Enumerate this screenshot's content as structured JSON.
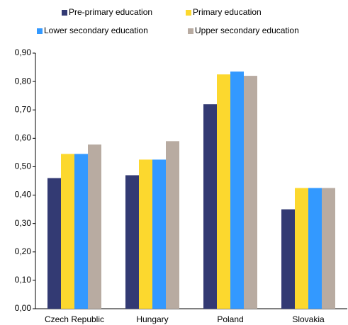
{
  "chart_data": {
    "type": "bar",
    "categories": [
      "Czech Republic",
      "Hungary",
      "Poland",
      "Slovakia"
    ],
    "series": [
      {
        "name": "Pre-primary education",
        "color": "#333a73",
        "values": [
          0.46,
          0.47,
          0.72,
          0.35
        ]
      },
      {
        "name": "Primary education",
        "color": "#fcd82e",
        "values": [
          0.545,
          0.525,
          0.825,
          0.425
        ]
      },
      {
        "name": "Lower secondary education",
        "color": "#3399ff",
        "values": [
          0.545,
          0.525,
          0.835,
          0.425
        ]
      },
      {
        "name": "Upper secondary education",
        "color": "#b8aba1",
        "values": [
          0.578,
          0.59,
          0.82,
          0.425
        ]
      }
    ],
    "ylim": [
      0,
      0.9
    ],
    "yticks": [
      {
        "value": 0,
        "label": "0,00"
      },
      {
        "value": 0.1,
        "label": "0,10"
      },
      {
        "value": 0.2,
        "label": "0,20"
      },
      {
        "value": 0.3,
        "label": "0,30"
      },
      {
        "value": 0.4,
        "label": "0,40"
      },
      {
        "value": 0.5,
        "label": "0,50"
      },
      {
        "value": 0.6,
        "label": "0,60"
      },
      {
        "value": 0.7,
        "label": "0,70"
      },
      {
        "value": 0.8,
        "label": "0,80"
      },
      {
        "value": 0.9,
        "label": "0,90"
      }
    ],
    "grid": false
  }
}
